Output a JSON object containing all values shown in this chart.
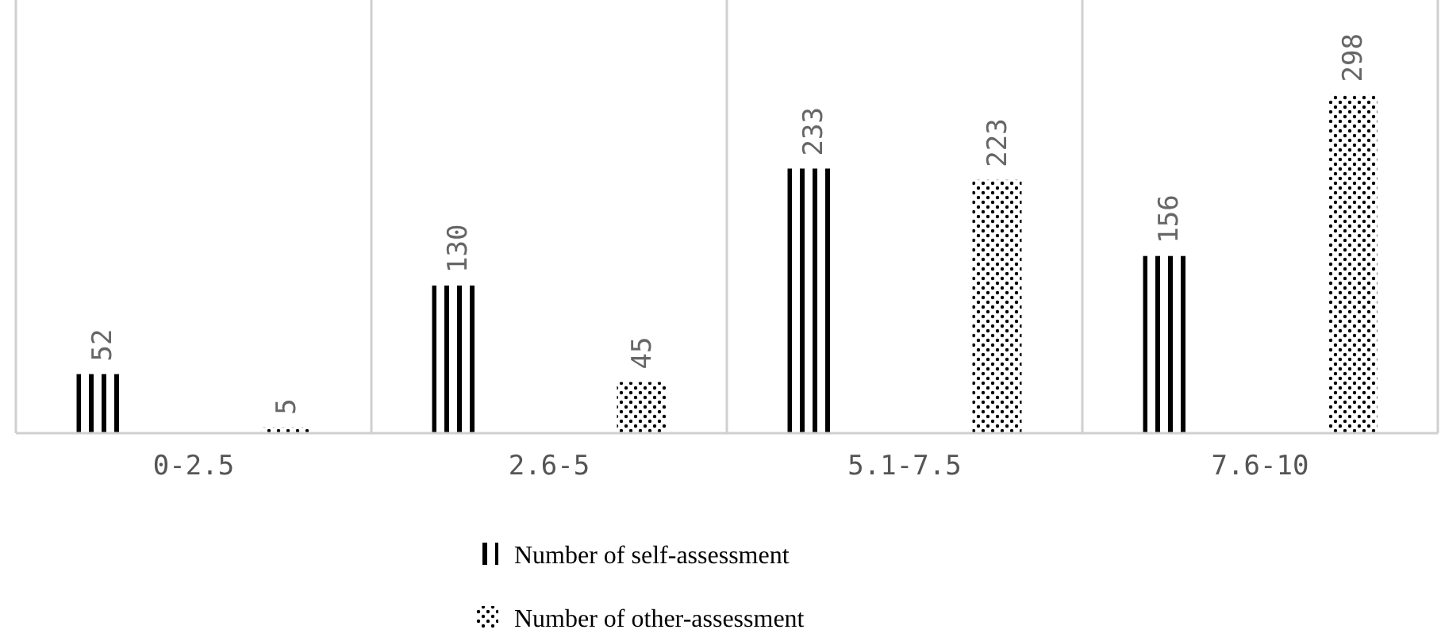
{
  "chart_data": {
    "type": "bar",
    "categories": [
      "0-2.5",
      "2.6-5",
      "5.1-7.5",
      "7.6-10"
    ],
    "series": [
      {
        "name": "Number of self-assessment",
        "color": "#000000",
        "values": [
          52,
          130,
          233,
          156
        ]
      },
      {
        "name": "Number of other-assessment",
        "color": "#000000",
        "values": [
          5,
          45,
          223,
          298
        ]
      }
    ],
    "data_labels": true,
    "legend": "bottom",
    "grid": "x"
  }
}
